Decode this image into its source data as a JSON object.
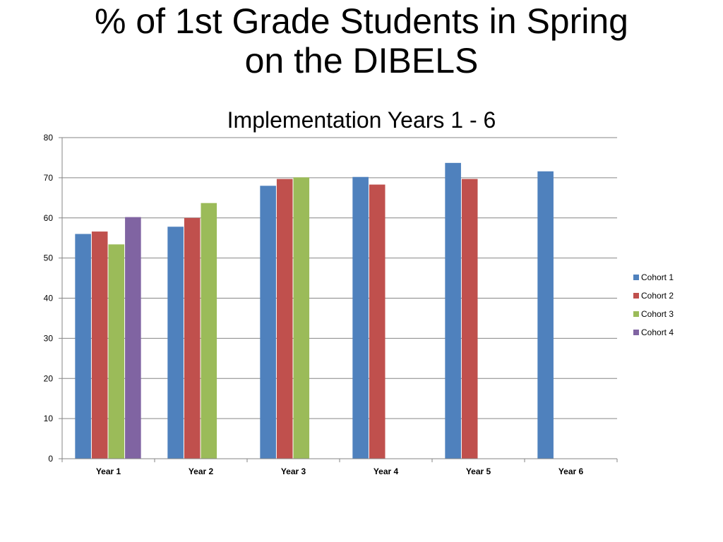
{
  "chart_data": {
    "type": "bar",
    "title_line1": "% of 1st Grade Students in Spring",
    "title_line2": "on the DIBELS",
    "subtitle": "Implementation Years 1 - 6",
    "categories": [
      "Year 1",
      "Year 2",
      "Year 3",
      "Year 4",
      "Year 5",
      "Year 6"
    ],
    "series": [
      {
        "name": "Cohort 1",
        "color": "#4F81BD",
        "values": [
          56,
          57.8,
          68,
          70.2,
          73.7,
          71.6
        ]
      },
      {
        "name": "Cohort 2",
        "color": "#C0504D",
        "values": [
          56.6,
          60,
          69.7,
          68.3,
          69.7,
          null
        ]
      },
      {
        "name": "Cohort 3",
        "color": "#9BBB59",
        "values": [
          53.4,
          63.7,
          70.1,
          null,
          null,
          null
        ]
      },
      {
        "name": "Cohort 4",
        "color": "#8064A2",
        "values": [
          60.2,
          null,
          null,
          null,
          null,
          null
        ]
      }
    ],
    "ylim": [
      0,
      80
    ],
    "yticks": [
      0,
      10,
      20,
      30,
      40,
      50,
      60,
      70,
      80
    ],
    "grid": true,
    "legend": "right"
  }
}
